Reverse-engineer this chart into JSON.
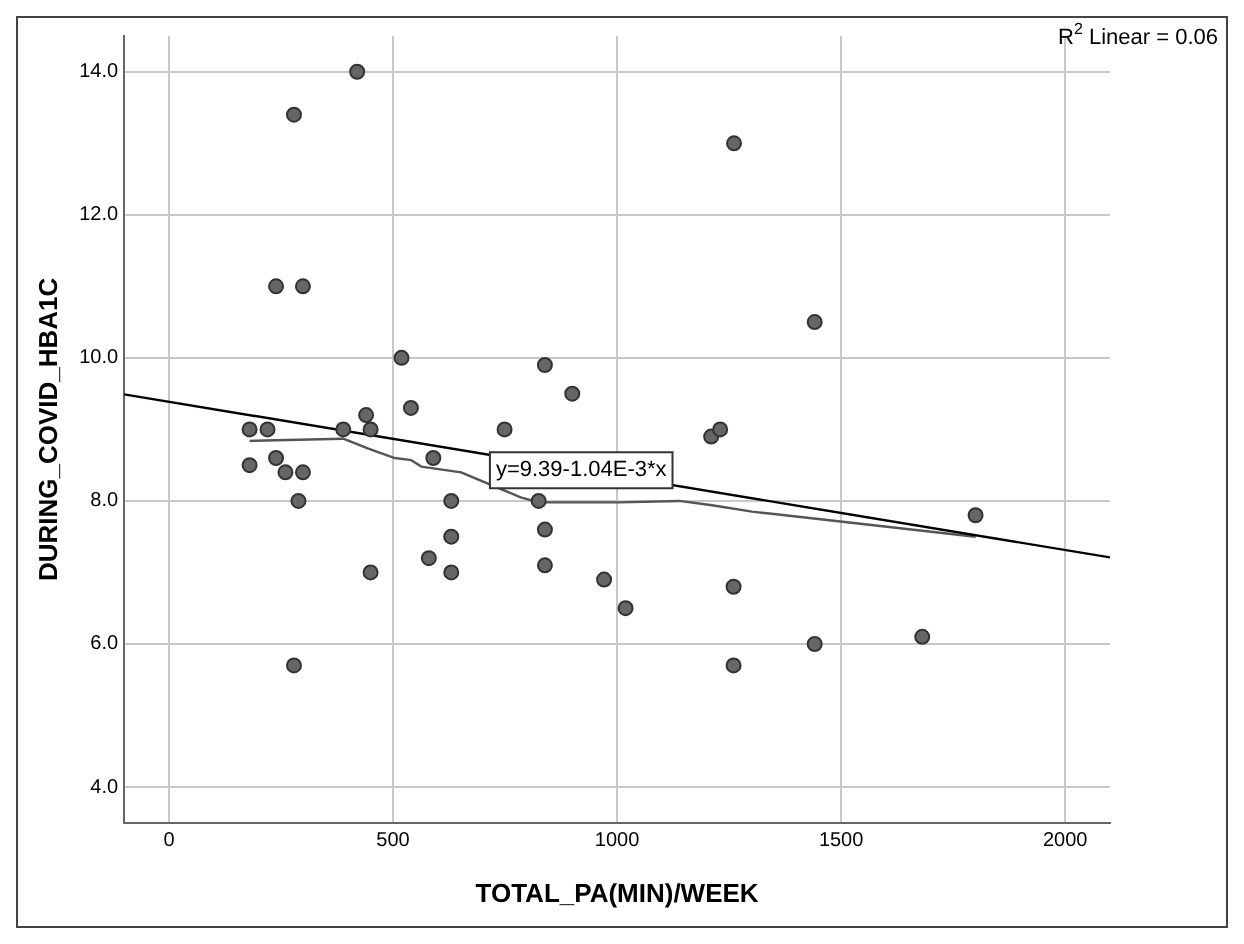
{
  "chart_data": {
    "type": "scatter",
    "xlabel": "TOTAL_PA(MIN)/WEEK",
    "ylabel": "DURING_COVID_HBA1C",
    "xlim": [
      -100,
      2100
    ],
    "xticks": [
      0,
      500,
      1000,
      1500,
      2000
    ],
    "ylim": [
      3.5,
      14.5
    ],
    "yticks": [
      {
        "value": 4,
        "label": "4.0"
      },
      {
        "value": 6,
        "label": "6.0"
      },
      {
        "value": 8,
        "label": "8.0"
      },
      {
        "value": 10,
        "label": "10.0"
      },
      {
        "value": 12,
        "label": "12.0"
      },
      {
        "value": 14,
        "label": "14.0"
      }
    ],
    "grid": true,
    "legend": false,
    "series": [
      {
        "marker": "circle",
        "color": "#666666",
        "x": [
          420,
          279,
          1261,
          239,
          299,
          519,
          839,
          900,
          540,
          440,
          180,
          220,
          389,
          450,
          749,
          1210,
          1230,
          180,
          239,
          260,
          299,
          590,
          289,
          630,
          825,
          839,
          630,
          580,
          450,
          630,
          839,
          971,
          1019,
          1260,
          279,
          1260,
          1441,
          1800,
          1441,
          1681
        ],
        "values": [
          14.0,
          13.4,
          13.0,
          11.0,
          11.0,
          10.0,
          9.9,
          9.5,
          9.3,
          9.2,
          9.0,
          9.0,
          9.0,
          9.0,
          9.0,
          8.9,
          9.0,
          8.5,
          8.6,
          8.4,
          8.4,
          8.6,
          8.0,
          8.0,
          8.0,
          7.6,
          7.5,
          7.2,
          7.0,
          7.0,
          7.1,
          6.9,
          6.5,
          6.8,
          5.7,
          5.7,
          10.5,
          7.8,
          6.0,
          6.1
        ]
      },
      {
        "type": "line",
        "color": "#000000",
        "x": [
          -100,
          2100
        ],
        "values": [
          9.49,
          7.21
        ]
      },
      {
        "type": "line",
        "color": "#555555",
        "x": [
          180,
          389,
          445,
          504,
          541,
          563,
          652,
          785,
          825,
          917,
          1006,
          1139,
          1212,
          1301,
          1345,
          1800
        ],
        "values": [
          8.84,
          8.87,
          8.73,
          8.6,
          8.57,
          8.48,
          8.4,
          8.05,
          7.98,
          7.98,
          7.98,
          8.0,
          7.94,
          7.85,
          7.82,
          7.5
        ]
      }
    ],
    "annotations": [
      {
        "text": "y=9.39-1.04E-3*x",
        "x": 920,
        "y": 8.43
      },
      "R$^{2}$ Linear = 0.06"
    ]
  }
}
